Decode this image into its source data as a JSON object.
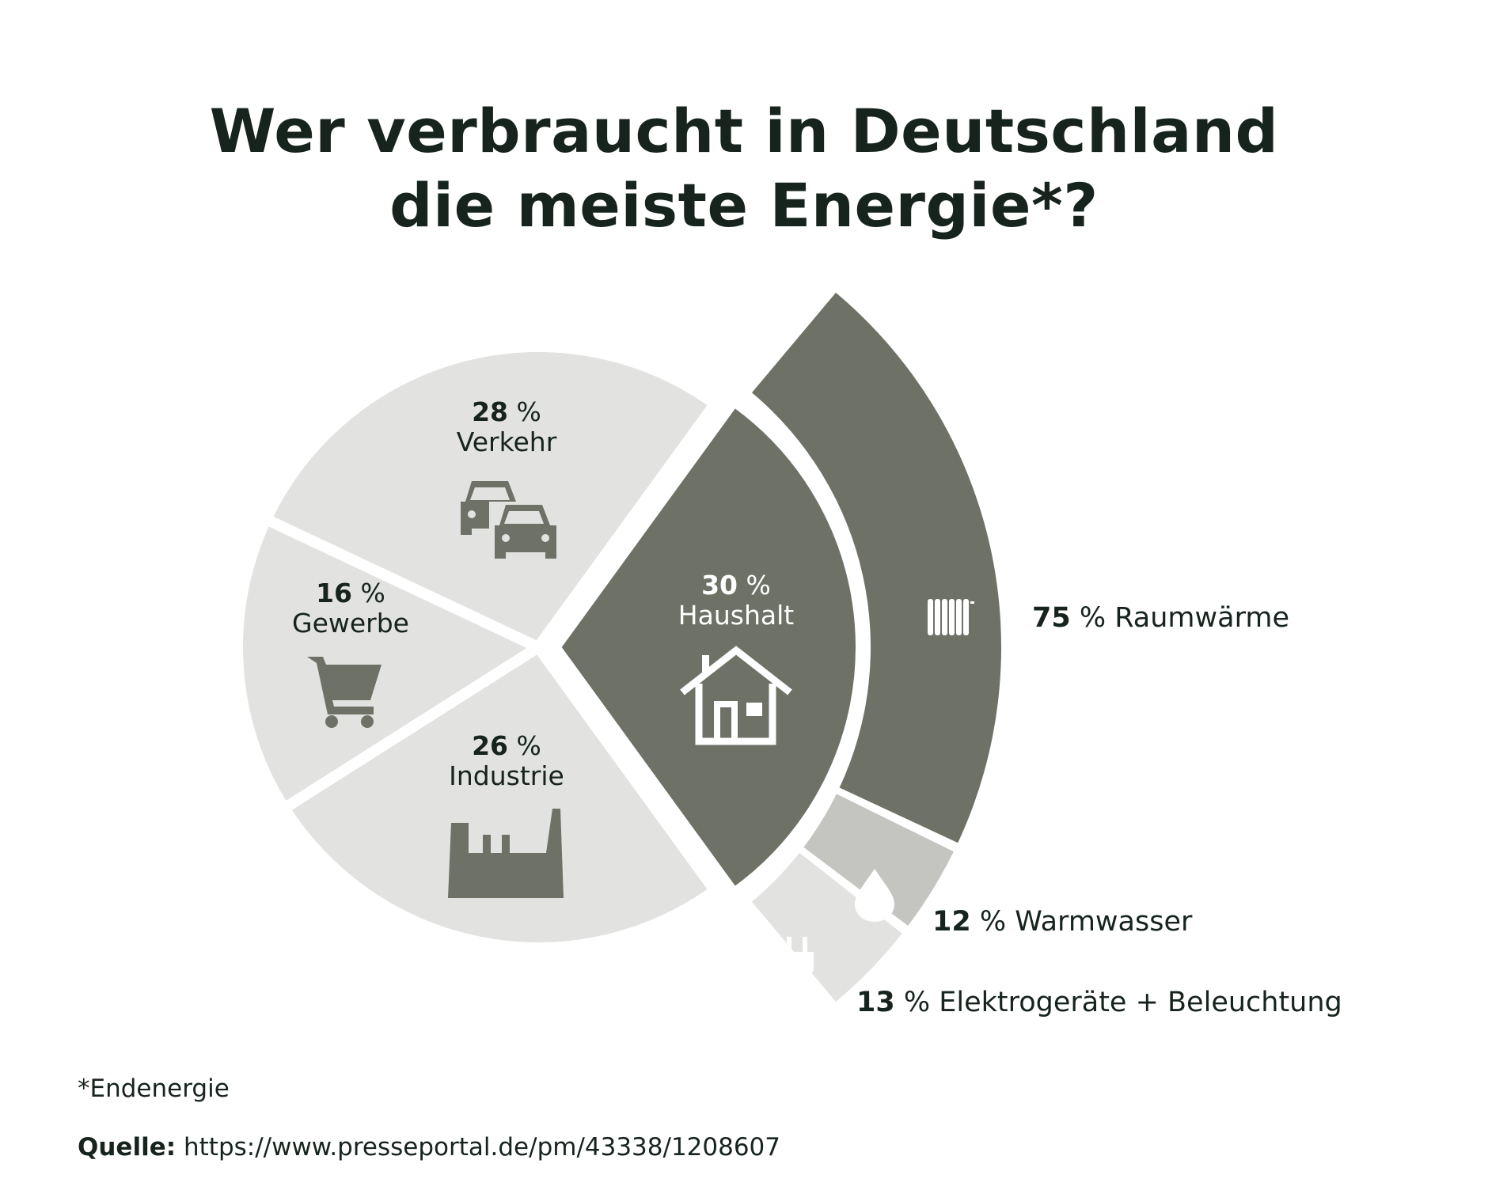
{
  "title": {
    "line1": "Wer verbraucht in Deutschland",
    "line2": "die meiste Energie*?"
  },
  "chart_data": [
    {
      "type": "pie",
      "title": "Wer verbraucht in Deutschland die meiste Energie*?",
      "slices": [
        {
          "label": "Haushalt",
          "value": 30,
          "value_text": "30",
          "unit": "%",
          "icon": "house-icon",
          "color": "#6e7266"
        },
        {
          "label": "Verkehr",
          "value": 28,
          "value_text": "28",
          "unit": "%",
          "icon": "cars-icon",
          "color": "#e2e2e0"
        },
        {
          "label": "Gewerbe",
          "value": 16,
          "value_text": "16",
          "unit": "%",
          "icon": "shopping-cart-icon",
          "color": "#e2e2e0"
        },
        {
          "label": "Industrie",
          "value": 26,
          "value_text": "26",
          "unit": "%",
          "icon": "factory-icon",
          "color": "#e2e2e0"
        }
      ]
    },
    {
      "type": "pie",
      "breakdown_of": "Haushalt",
      "slices": [
        {
          "label": "Raumwärme",
          "value": 75,
          "value_text": "75",
          "unit": "%",
          "icon": "radiator-icon",
          "color": "#6e7266"
        },
        {
          "label": "Warmwasser",
          "value": 12,
          "value_text": "12",
          "unit": "%",
          "icon": "water-drop-icon",
          "color": "#c4c4c0"
        },
        {
          "label": "Elektrogeräte + Beleuchtung",
          "value": 13,
          "value_text": "13",
          "unit": "%",
          "icon": "plug-icon",
          "color": "#e2e2e0"
        }
      ]
    }
  ],
  "footnote": "*Endenergie",
  "source": {
    "label": "Quelle:",
    "url": "https://www.presseportal.de/pm/43338/1208607"
  },
  "colors": {
    "dark": "#6e7266",
    "mid": "#c4c4c0",
    "light": "#e2e2e0",
    "text": "#17241d",
    "white": "#ffffff"
  }
}
